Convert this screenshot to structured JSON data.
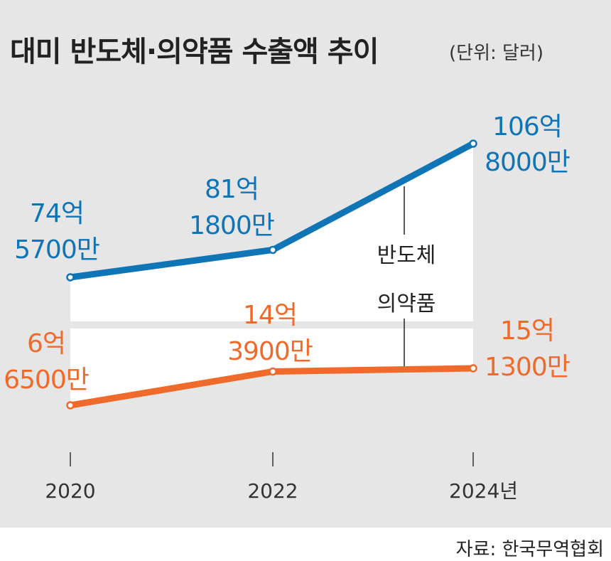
{
  "title": "대미 반도체·의약품 수출액 추이",
  "unit": "(단위: 달러)",
  "source": "자료: 한국무역협회",
  "colors": {
    "semiconductor": "#0f75b6",
    "pharma": "#ef6a2b",
    "background": "#e6e6e7",
    "area": "#ffffff"
  },
  "chart_data": {
    "type": "line",
    "categories": [
      "2020",
      "2022",
      "2024년"
    ],
    "series": [
      {
        "name": "반도체",
        "values": [
          7457000000,
          8118000000,
          10680000000
        ],
        "labels": [
          [
            "74억",
            "5700만"
          ],
          [
            "81억",
            "1800만"
          ],
          [
            "106억",
            "8000만"
          ]
        ]
      },
      {
        "name": "의약품",
        "values": [
          665000000,
          1439000000,
          1513000000
        ],
        "labels": [
          [
            "6억",
            "6500만"
          ],
          [
            "14억",
            "3900만"
          ],
          [
            "15억",
            "1300만"
          ]
        ]
      }
    ],
    "grid": false,
    "legend": "inline-center-right"
  }
}
